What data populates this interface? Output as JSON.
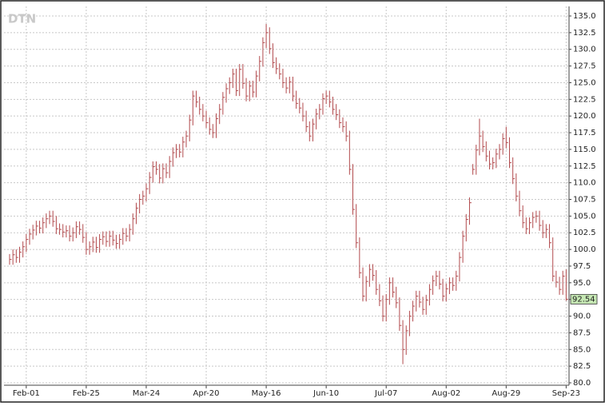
{
  "chart_data": {
    "type": "hlc",
    "watermark": "DTN",
    "color": "#b24a4d",
    "grid": true,
    "categories": [
      null,
      null,
      null,
      null,
      null,
      "Feb-01",
      null,
      null,
      null,
      null,
      null,
      null,
      null,
      null,
      null,
      null,
      null,
      null,
      null,
      null,
      null,
      null,
      null,
      "Feb-25",
      null,
      null,
      null,
      null,
      null,
      null,
      null,
      null,
      null,
      null,
      null,
      null,
      null,
      null,
      null,
      null,
      null,
      "Mar-24",
      null,
      null,
      null,
      null,
      null,
      null,
      null,
      null,
      null,
      null,
      null,
      null,
      null,
      null,
      null,
      null,
      null,
      "Apr-20",
      null,
      null,
      null,
      null,
      null,
      null,
      null,
      null,
      null,
      null,
      null,
      null,
      null,
      null,
      null,
      null,
      null,
      "May-16",
      null,
      null,
      null,
      null,
      null,
      null,
      null,
      null,
      null,
      null,
      null,
      null,
      null,
      null,
      null,
      null,
      null,
      "Jun-10",
      null,
      null,
      null,
      null,
      null,
      null,
      null,
      null,
      null,
      null,
      null,
      null,
      null,
      null,
      null,
      null,
      null,
      "Jul-07",
      null,
      null,
      null,
      null,
      null,
      null,
      null,
      null,
      null,
      null,
      null,
      null,
      null,
      null,
      null,
      null,
      null,
      "Aug-02",
      null,
      null,
      null,
      null,
      null,
      null,
      null,
      null,
      null,
      null,
      null,
      null,
      null,
      null,
      null,
      null,
      null,
      "Aug-29",
      null,
      null,
      null,
      null,
      null,
      null,
      null,
      null,
      null,
      null,
      null,
      null,
      null,
      null,
      null,
      null,
      null,
      "Sep-23"
    ],
    "high": [
      99.3,
      100.0,
      100.0,
      100.4,
      101.2,
      102.3,
      103.1,
      103.7,
      104.3,
      104.3,
      104.8,
      105.4,
      105.8,
      105.8,
      105.0,
      103.9,
      103.8,
      103.6,
      103.6,
      103.3,
      104.2,
      104.2,
      103.8,
      102.6,
      101.2,
      101.9,
      101.9,
      102.3,
      102.7,
      102.7,
      102.8,
      102.8,
      102.2,
      102.3,
      103.2,
      103.2,
      103.8,
      105.4,
      107.0,
      108.3,
      108.8,
      109.9,
      111.6,
      113.2,
      113.2,
      112.8,
      112.9,
      112.9,
      114.0,
      115.3,
      115.8,
      115.8,
      116.9,
      117.8,
      120.2,
      123.8,
      123.8,
      122.9,
      121.8,
      120.8,
      119.8,
      118.8,
      120.4,
      121.8,
      123.6,
      124.9,
      125.8,
      127.1,
      127.1,
      127.8,
      127.8,
      125.7,
      125.3,
      125.3,
      126.8,
      129.0,
      131.8,
      133.8,
      133.3,
      130.9,
      128.8,
      127.9,
      127.1,
      125.8,
      125.9,
      125.9,
      123.8,
      122.7,
      122.0,
      120.8,
      119.2,
      119.6,
      121.1,
      121.8,
      123.4,
      123.8,
      123.8,
      122.9,
      121.8,
      121.0,
      119.8,
      119.2,
      117.8,
      112.8,
      106.8,
      101.8,
      97.3,
      96.0,
      97.8,
      97.8,
      96.9,
      94.8,
      93.1,
      93.3,
      95.8,
      95.8,
      94.4,
      92.8,
      89.4,
      88.6,
      90.8,
      92.3,
      93.8,
      93.8,
      92.9,
      93.2,
      94.8,
      96.1,
      96.8,
      96.8,
      95.6,
      94.9,
      95.8,
      95.8,
      96.8,
      99.6,
      102.8,
      105.3,
      107.8,
      112.8,
      115.7,
      119.6,
      117.8,
      116.2,
      114.8,
      113.8,
      115.1,
      115.8,
      117.4,
      118.4,
      116.8,
      113.8,
      111.4,
      108.8,
      106.6,
      104.8,
      104.8,
      105.6,
      105.8,
      105.8,
      104.4,
      103.8,
      103.8,
      101.8,
      96.8,
      95.9,
      96.8,
      97.0
    ],
    "low": [
      97.7,
      97.7,
      98.0,
      98.0,
      98.8,
      99.6,
      100.7,
      101.5,
      102.1,
      102.4,
      102.4,
      103.2,
      103.8,
      103.4,
      102.3,
      102.2,
      101.8,
      101.8,
      101.2,
      101.2,
      101.7,
      102.2,
      101.0,
      99.2,
      99.2,
      99.6,
      99.5,
      99.5,
      100.7,
      100.4,
      100.4,
      100.6,
      100.1,
      100.1,
      100.7,
      101.2,
      101.2,
      102.2,
      103.8,
      105.4,
      106.7,
      107.2,
      108.3,
      110.0,
      111.2,
      109.9,
      109.9,
      110.7,
      110.7,
      112.4,
      113.7,
      113.8,
      113.8,
      115.3,
      116.2,
      118.6,
      121.3,
      120.2,
      119.2,
      118.2,
      117.2,
      116.7,
      116.7,
      118.8,
      120.2,
      122.0,
      123.3,
      124.2,
      123.0,
      123.0,
      124.1,
      122.2,
      122.2,
      122.8,
      122.8,
      125.2,
      127.4,
      130.2,
      129.3,
      127.2,
      126.3,
      125.5,
      124.2,
      123.4,
      123.4,
      122.2,
      121.1,
      120.4,
      119.2,
      117.6,
      116.2,
      116.2,
      118.0,
      119.5,
      120.2,
      121.8,
      121.3,
      120.2,
      119.4,
      118.2,
      117.6,
      116.2,
      111.2,
      105.2,
      100.2,
      95.7,
      92.2,
      92.2,
      94.4,
      95.3,
      93.2,
      91.5,
      89.2,
      89.2,
      91.7,
      92.8,
      91.2,
      87.8,
      82.8,
      84.2,
      87.0,
      89.2,
      90.7,
      91.3,
      90.2,
      90.2,
      91.6,
      93.2,
      94.5,
      94.0,
      92.2,
      92.2,
      93.3,
      93.8,
      93.8,
      95.2,
      98.0,
      101.2,
      103.7,
      111.2,
      111.2,
      114.1,
      114.6,
      113.2,
      112.0,
      112.0,
      112.2,
      113.5,
      114.2,
      115.2,
      112.2,
      109.8,
      107.2,
      105.0,
      103.2,
      102.3,
      102.3,
      103.2,
      104.0,
      102.8,
      101.7,
      101.7,
      100.2,
      95.2,
      94.3,
      93.2,
      93.2,
      92.3
    ],
    "close": [
      98.5,
      99.2,
      98.8,
      99.6,
      100.4,
      101.5,
      102.3,
      102.9,
      103.5,
      103.2,
      104,
      104.6,
      105,
      104.2,
      103.1,
      103,
      102.6,
      102.8,
      102,
      102.5,
      103.4,
      103,
      101.8,
      100,
      100.4,
      101.1,
      100.3,
      101.5,
      101.9,
      101.2,
      102,
      101.4,
      100.9,
      101.5,
      102.4,
      102,
      103,
      104.6,
      106.2,
      107.5,
      108,
      109.1,
      110.8,
      112.4,
      112,
      110.7,
      112.1,
      111.5,
      113.2,
      114.5,
      115,
      114.6,
      116.1,
      117,
      119.4,
      123,
      122.1,
      121,
      120,
      119,
      118,
      117.5,
      119.6,
      121,
      122.8,
      124.1,
      125,
      126.3,
      123.8,
      127,
      124.9,
      123,
      124.5,
      123.6,
      126,
      128.2,
      131,
      132.5,
      130.1,
      128,
      127.1,
      126.3,
      125,
      124.2,
      125.1,
      123,
      121.9,
      121.2,
      120,
      118.4,
      117,
      118.8,
      120.3,
      121,
      122.6,
      123,
      122.1,
      121,
      120.2,
      119,
      118.4,
      117,
      112,
      106,
      101,
      96.5,
      93,
      95.2,
      97,
      96.1,
      94,
      92.3,
      90,
      92.5,
      95,
      93.6,
      92,
      88.6,
      85,
      87.8,
      90,
      91.5,
      93,
      92.1,
      91,
      92.4,
      94,
      95.3,
      96,
      94.8,
      93,
      94.1,
      95,
      94.6,
      96,
      98.8,
      102,
      104.5,
      107,
      112,
      114.9,
      117,
      115.4,
      114,
      112.8,
      113,
      114.3,
      115,
      116.6,
      116,
      113,
      110.6,
      108,
      105.8,
      104,
      103.1,
      104,
      104.8,
      105,
      103.6,
      102.5,
      103,
      101,
      96,
      95.1,
      94,
      96,
      92.54
    ],
    "ylim": [
      80,
      135
    ],
    "yticks": [
      {
        "value": 80,
        "label": "80.0"
      },
      82.5,
      {
        "value": 85,
        "label": "85.0"
      },
      87.5,
      {
        "value": 90,
        "label": "90.0"
      },
      92.5,
      {
        "value": 95,
        "label": "95.0"
      },
      97.5,
      {
        "value": 100,
        "label": "100.0"
      },
      102.5,
      {
        "value": 105,
        "label": "105.0"
      },
      107.5,
      {
        "value": 110,
        "label": "110.0"
      },
      112.5,
      {
        "value": 115,
        "label": "115.0"
      },
      117.5,
      {
        "value": 120,
        "label": "120.0"
      },
      122.5,
      {
        "value": 125,
        "label": "125.0"
      },
      127.5,
      {
        "value": 130,
        "label": "130.0"
      },
      132.5,
      {
        "value": 135,
        "label": "135.0"
      }
    ],
    "last_price": {
      "value": 92.54,
      "label": "92.54"
    }
  }
}
